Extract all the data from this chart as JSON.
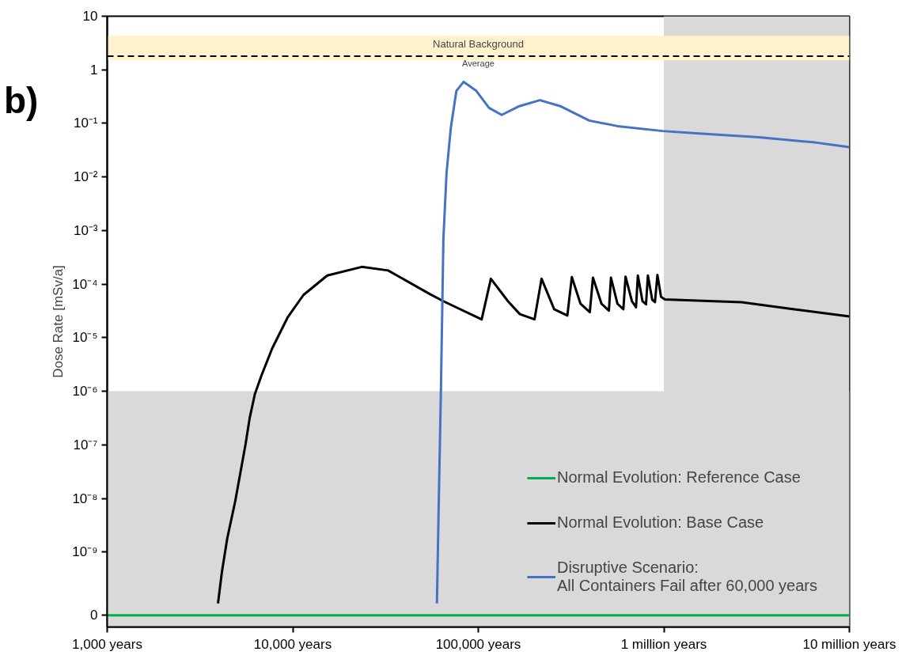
{
  "chart_data": {
    "type": "line",
    "xlabel": null,
    "ylabel": "Dose Rate [mSv/a]",
    "annotations": [
      "b)"
    ],
    "log": "xy",
    "xlim": [
      1000,
      10000000
    ],
    "xticks": [
      {
        "value": 1000,
        "label": "1,000 years"
      },
      {
        "value": 10000,
        "label": "10,000 years"
      },
      {
        "value": 100000,
        "label": "100,000 years"
      },
      {
        "value": 1000000,
        "label": "1 million years"
      },
      {
        "value": 10000000,
        "label": "10 million years"
      }
    ],
    "ylim": [
      4e-11,
      10
    ],
    "yticks": [
      10,
      1,
      {
        "value": 0.1,
        "label": "10⁻¹"
      },
      {
        "value": 0.01,
        "label": "10⁻²"
      },
      {
        "value": 0.001,
        "label": "10⁻³"
      },
      {
        "value": 0.0001,
        "label": "10⁻⁴"
      },
      {
        "value": 1e-05,
        "label": "10⁻⁵"
      },
      {
        "value": 1e-06,
        "label": "10⁻⁶"
      },
      {
        "value": 1e-07,
        "label": "10⁻⁷"
      },
      {
        "value": 1e-08,
        "label": "10⁻⁸"
      },
      {
        "value": 1e-09,
        "label": "10⁻⁹"
      },
      {
        "value": 6.6e-11,
        "label": "0"
      }
    ],
    "grid": false,
    "legend": "bottom right",
    "line_style": "solid",
    "marker": "none",
    "bands": [
      {
        "axis": "y",
        "from": 4e-11,
        "to": 1e-06,
        "color": "#d9d9d9",
        "label": null
      },
      {
        "axis": "x",
        "from": 1000000,
        "to": 10000000,
        "color": "#d9d9d9",
        "label": null
      },
      {
        "axis": "y",
        "from": 1.5,
        "to": 4.3,
        "color": "#fff2cc",
        "label": "Natural Background"
      }
    ],
    "ref_lines": [
      {
        "axis": "y",
        "value": 1.8,
        "label": "Average",
        "color": "#000000",
        "line_style": "dashed"
      }
    ],
    "series": [
      {
        "name": "Normal Evolution: Reference Case",
        "color": "#00b050",
        "x": [
          1000,
          10000000
        ],
        "values": [
          6.6e-11,
          6.6e-11
        ]
      },
      {
        "name": "Normal Evolution: Base Case",
        "color": "#000000",
        "x": [
          3954,
          4150,
          4436,
          4898,
          5572,
          5861,
          6252,
          6792,
          7745,
          9419,
          11429,
          15346,
          23550,
          32659,
          54954,
          64863,
          104000,
          104300,
          116900,
          144500,
          167500,
          200900,
          219300,
          256400,
          302000,
          319200,
          355600,
          399000,
          415000,
          461300,
          505800,
          518800,
          562300,
          605300,
          621700,
          673000,
          708000,
          724400,
          767400,
          801700,
          820400,
          866000,
          895400,
          923600,
          966100,
          1014000,
          2624000,
          5047000,
          10000000
        ],
        "values": [
          1.1e-10,
          4.2e-10,
          1.8e-09,
          8.9e-09,
          1.05e-07,
          3.2e-07,
          8.9e-07,
          2e-06,
          6.3e-06,
          2.45e-05,
          6.3e-05,
          0.000145,
          0.00021,
          0.00018,
          6.5e-05,
          4.8e-05,
          2.2e-05,
          2.2e-05,
          0.000126,
          4.8e-05,
          2.75e-05,
          2.2e-05,
          0.000126,
          3.4e-05,
          2.6e-05,
          0.000135,
          4.3e-05,
          3e-05,
          0.000132,
          4.3e-05,
          3.2e-05,
          0.000132,
          4.3e-05,
          3.4e-05,
          0.000138,
          4.8e-05,
          3.7e-05,
          0.000145,
          4.8e-05,
          4.2e-05,
          0.000145,
          5.1e-05,
          4.6e-05,
          0.000148,
          5.8e-05,
          5.2e-05,
          4.6e-05,
          3.4e-05,
          2.5e-05
        ]
      },
      {
        "name": "Disruptive Scenario:\nAll Containers Fail after 60,000 years",
        "color": "#4472c4",
        "x": [
          59840,
          61240,
          62810,
          64860,
          67450,
          71120,
          76210,
          83370,
          97510,
          114300,
          133700,
          164800,
          214800,
          279300,
          396300,
          562300,
          986300,
          1611000,
          3251000,
          6561000,
          10000000
        ],
        "values": [
          1.1e-10,
          8.9e-09,
          8.1e-07,
          0.00072,
          0.012,
          0.083,
          0.405,
          0.597,
          0.405,
          0.195,
          0.144,
          0.207,
          0.271,
          0.207,
          0.113,
          0.089,
          0.072,
          0.064,
          0.055,
          0.044,
          0.036
        ]
      }
    ]
  }
}
